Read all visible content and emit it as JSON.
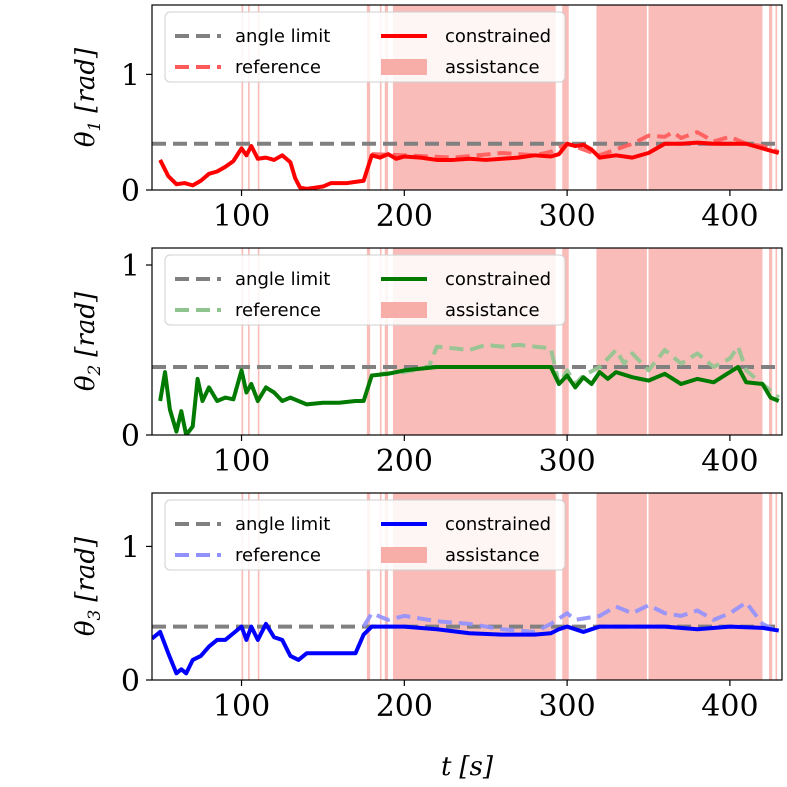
{
  "chart_data": [
    {
      "type": "line",
      "id": "theta1",
      "ylabel_main": "θ",
      "ylabel_sub": "1",
      "ylabel_unit": "[rad]",
      "xlim": [
        45,
        432
      ],
      "ylim": [
        0,
        1.6
      ],
      "yticks": [
        0,
        1
      ],
      "xticks": [
        100,
        200,
        300,
        400
      ],
      "angle_limit": 0.4,
      "constrained_color": "#ff0000",
      "reference_color": "#ff5a5a",
      "legend": {
        "angle_limit": "angle limit",
        "reference": "reference",
        "constrained": "constrained",
        "assistance": "assistance"
      },
      "constrained": {
        "x": [
          50,
          55,
          60,
          65,
          70,
          75,
          80,
          85,
          90,
          95,
          100,
          103,
          106,
          110,
          115,
          120,
          125,
          130,
          133,
          136,
          140,
          145,
          150,
          155,
          160,
          165,
          170,
          175,
          180,
          185,
          190,
          195,
          200,
          210,
          220,
          230,
          240,
          250,
          260,
          270,
          280,
          290,
          295,
          300,
          305,
          310,
          315,
          320,
          330,
          340,
          350,
          360,
          370,
          380,
          390,
          400,
          410,
          420,
          425,
          430
        ],
        "y": [
          0.26,
          0.12,
          0.05,
          0.06,
          0.04,
          0.08,
          0.14,
          0.16,
          0.2,
          0.25,
          0.36,
          0.3,
          0.38,
          0.27,
          0.28,
          0.26,
          0.3,
          0.24,
          0.1,
          0.02,
          0.01,
          0.02,
          0.03,
          0.06,
          0.06,
          0.06,
          0.07,
          0.08,
          0.3,
          0.28,
          0.31,
          0.27,
          0.29,
          0.28,
          0.26,
          0.26,
          0.27,
          0.26,
          0.27,
          0.28,
          0.3,
          0.29,
          0.31,
          0.4,
          0.38,
          0.39,
          0.35,
          0.28,
          0.3,
          0.28,
          0.32,
          0.4,
          0.4,
          0.41,
          0.4,
          0.4,
          0.4,
          0.36,
          0.34,
          0.32
        ]
      },
      "reference": {
        "x": [
          180,
          200,
          230,
          260,
          280,
          290,
          300,
          320,
          330,
          340,
          350,
          360,
          365,
          370,
          380,
          390,
          400,
          410,
          420,
          430
        ],
        "y": [
          0.31,
          0.3,
          0.28,
          0.32,
          0.3,
          0.33,
          0.4,
          0.3,
          0.35,
          0.4,
          0.47,
          0.46,
          0.5,
          0.45,
          0.5,
          0.42,
          0.46,
          0.4,
          0.38,
          0.33
        ]
      },
      "assistance": [
        [
          100,
          101
        ],
        [
          104,
          105
        ],
        [
          110,
          111
        ],
        [
          177,
          179
        ],
        [
          185,
          186
        ],
        [
          188,
          190
        ],
        [
          193,
          293
        ],
        [
          297,
          301
        ],
        [
          318,
          349
        ],
        [
          350,
          420
        ],
        [
          424,
          426
        ],
        [
          428,
          429
        ]
      ]
    },
    {
      "type": "line",
      "id": "theta2",
      "ylabel_main": "θ",
      "ylabel_sub": "2",
      "ylabel_unit": "[rad]",
      "xlim": [
        45,
        432
      ],
      "ylim": [
        0,
        1.1
      ],
      "yticks": [
        0,
        1
      ],
      "xticks": [
        100,
        200,
        300,
        400
      ],
      "angle_limit": 0.4,
      "constrained_color": "#007a00",
      "reference_color": "#8fc48f",
      "legend": {
        "angle_limit": "angle limit",
        "reference": "reference",
        "constrained": "constrained",
        "assistance": "assistance"
      },
      "constrained": {
        "x": [
          50,
          53,
          56,
          60,
          63,
          66,
          70,
          73,
          76,
          80,
          85,
          90,
          95,
          100,
          103,
          106,
          110,
          115,
          120,
          125,
          130,
          135,
          140,
          150,
          160,
          170,
          175,
          180,
          190,
          200,
          220,
          240,
          260,
          280,
          290,
          295,
          300,
          305,
          310,
          315,
          320,
          325,
          330,
          340,
          350,
          360,
          370,
          380,
          390,
          400,
          405,
          410,
          420,
          425,
          430
        ],
        "y": [
          0.2,
          0.37,
          0.15,
          0.02,
          0.14,
          0.0,
          0.05,
          0.33,
          0.2,
          0.28,
          0.2,
          0.22,
          0.21,
          0.38,
          0.25,
          0.3,
          0.2,
          0.28,
          0.25,
          0.2,
          0.22,
          0.2,
          0.18,
          0.19,
          0.19,
          0.2,
          0.2,
          0.35,
          0.36,
          0.38,
          0.4,
          0.4,
          0.4,
          0.4,
          0.4,
          0.3,
          0.35,
          0.28,
          0.34,
          0.3,
          0.37,
          0.33,
          0.37,
          0.34,
          0.32,
          0.36,
          0.3,
          0.33,
          0.31,
          0.37,
          0.4,
          0.31,
          0.3,
          0.22,
          0.2
        ]
      },
      "reference": {
        "x": [
          185,
          200,
          215,
          220,
          240,
          250,
          260,
          270,
          280,
          290,
          295,
          300,
          305,
          310,
          320,
          330,
          335,
          340,
          350,
          360,
          370,
          380,
          390,
          400,
          405,
          410,
          420,
          430
        ],
        "y": [
          0.36,
          0.37,
          0.4,
          0.52,
          0.5,
          0.53,
          0.52,
          0.53,
          0.52,
          0.51,
          0.3,
          0.38,
          0.3,
          0.35,
          0.4,
          0.5,
          0.42,
          0.48,
          0.38,
          0.5,
          0.42,
          0.48,
          0.4,
          0.45,
          0.52,
          0.38,
          0.3,
          0.22
        ]
      },
      "assistance": [
        [
          100,
          101
        ],
        [
          104,
          105
        ],
        [
          110,
          111
        ],
        [
          177,
          179
        ],
        [
          185,
          186
        ],
        [
          188,
          190
        ],
        [
          193,
          293
        ],
        [
          297,
          301
        ],
        [
          318,
          349
        ],
        [
          350,
          420
        ],
        [
          424,
          426
        ],
        [
          428,
          429
        ]
      ]
    },
    {
      "type": "line",
      "id": "theta3",
      "ylabel_main": "θ",
      "ylabel_sub": "3",
      "ylabel_unit": "[rad]",
      "xlim": [
        45,
        432
      ],
      "ylim": [
        0,
        1.4
      ],
      "yticks": [
        0,
        1
      ],
      "xticks": [
        100,
        200,
        300,
        400
      ],
      "xlabel_main": "t",
      "xlabel_unit": "[s]",
      "angle_limit": 0.4,
      "constrained_color": "#0000ff",
      "reference_color": "#9090ff",
      "legend": {
        "angle_limit": "angle limit",
        "reference": "reference",
        "constrained": "constrained",
        "assistance": "assistance"
      },
      "constrained": {
        "x": [
          45,
          50,
          55,
          60,
          63,
          66,
          70,
          75,
          80,
          85,
          90,
          95,
          100,
          103,
          106,
          110,
          115,
          120,
          125,
          130,
          135,
          140,
          145,
          150,
          160,
          170,
          175,
          180,
          200,
          220,
          240,
          260,
          280,
          290,
          295,
          300,
          310,
          320,
          340,
          360,
          380,
          400,
          420,
          430
        ],
        "y": [
          0.31,
          0.36,
          0.2,
          0.05,
          0.08,
          0.05,
          0.15,
          0.18,
          0.25,
          0.3,
          0.3,
          0.35,
          0.4,
          0.3,
          0.4,
          0.3,
          0.42,
          0.32,
          0.3,
          0.18,
          0.15,
          0.2,
          0.2,
          0.2,
          0.2,
          0.2,
          0.34,
          0.4,
          0.4,
          0.38,
          0.35,
          0.34,
          0.34,
          0.35,
          0.38,
          0.4,
          0.36,
          0.4,
          0.4,
          0.4,
          0.38,
          0.4,
          0.39,
          0.37
        ]
      },
      "reference": {
        "x": [
          175,
          180,
          190,
          200,
          220,
          240,
          260,
          280,
          290,
          300,
          305,
          320,
          330,
          340,
          350,
          360,
          370,
          380,
          390,
          400,
          410,
          420,
          430
        ],
        "y": [
          0.4,
          0.5,
          0.45,
          0.48,
          0.44,
          0.42,
          0.38,
          0.36,
          0.42,
          0.5,
          0.45,
          0.48,
          0.55,
          0.5,
          0.56,
          0.5,
          0.48,
          0.52,
          0.45,
          0.5,
          0.58,
          0.42,
          0.36
        ]
      },
      "assistance": [
        [
          100,
          101
        ],
        [
          104,
          105
        ],
        [
          110,
          111
        ],
        [
          177,
          179
        ],
        [
          185,
          186
        ],
        [
          188,
          190
        ],
        [
          193,
          293
        ],
        [
          297,
          301
        ],
        [
          318,
          349
        ],
        [
          350,
          420
        ],
        [
          424,
          426
        ],
        [
          428,
          429
        ]
      ]
    }
  ]
}
